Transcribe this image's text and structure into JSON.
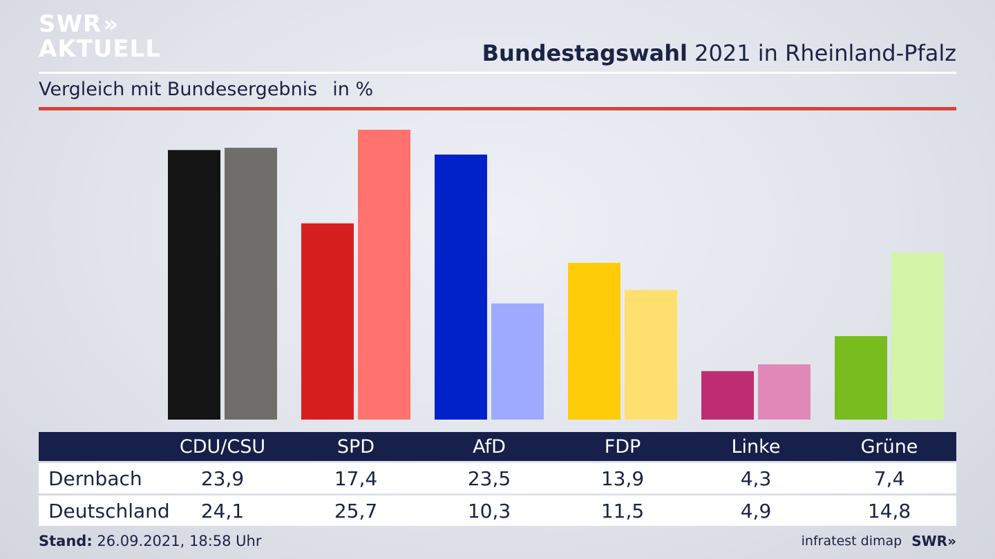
{
  "brand": {
    "line1": "SWR",
    "line2": "AKTUELL",
    "chevrons": "»"
  },
  "header": {
    "title_bold": "Bundestagswahl",
    "title_rest": " 2021 in Rheinland-Pfalz"
  },
  "subheader": {
    "text": "Vergleich mit Bundesergebnis",
    "unit": "in %"
  },
  "colors": {
    "red_rule": "#d4463a",
    "navy": "#16204a"
  },
  "chart_data": {
    "type": "bar",
    "categories": [
      "CDU/CSU",
      "SPD",
      "AfD",
      "FDP",
      "Linke",
      "Grüne"
    ],
    "series": [
      {
        "name": "Dernbach",
        "values": [
          23.9,
          17.4,
          23.5,
          13.9,
          4.3,
          7.4
        ],
        "colors": [
          "#141414",
          "#d71f1f",
          "#0022c8",
          "#ffcc0a",
          "#be2d72",
          "#78bc1e"
        ]
      },
      {
        "name": "Deutschland",
        "values": [
          24.1,
          25.7,
          10.3,
          11.5,
          4.9,
          14.8
        ],
        "colors": [
          "#6f6e6b",
          "#ff726d",
          "#9eaaff",
          "#ffdf6e",
          "#e089b8",
          "#d2f5a8"
        ]
      }
    ],
    "ylim": [
      0,
      25.7
    ],
    "grid": false,
    "legend": "none"
  },
  "table": {
    "headers": [
      "CDU/CSU",
      "SPD",
      "AfD",
      "FDP",
      "Linke",
      "Grüne"
    ],
    "rows": [
      {
        "label": "Dernbach",
        "values": [
          "23,9",
          "17,4",
          "23,5",
          "13,9",
          "4,3",
          "7,4"
        ]
      },
      {
        "label": "Deutschland",
        "values": [
          "24,1",
          "25,7",
          "10,3",
          "11,5",
          "4,9",
          "14,8"
        ]
      }
    ]
  },
  "footer": {
    "stand_label": "Stand:",
    "stand_value": " 26.09.2021, 18:58 Uhr",
    "source": "infratest dimap",
    "brand": "SWR»"
  }
}
